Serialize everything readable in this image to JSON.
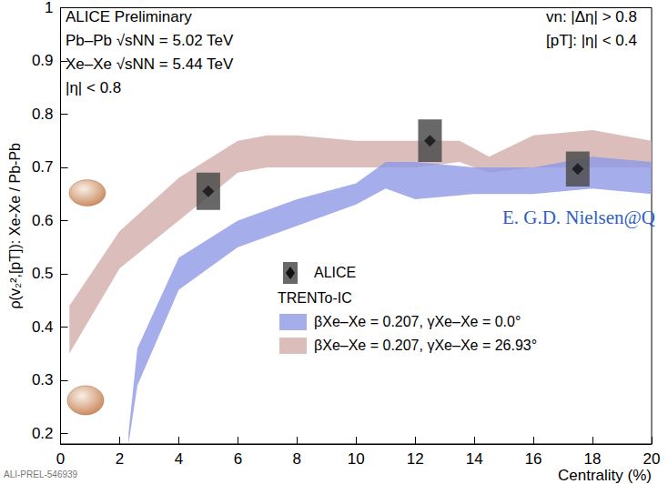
{
  "chart_data": {
    "type": "scatter",
    "xlabel": "Centrality (%)",
    "ylabel": "ρ(v₂²,[pT]): Xe-Xe / Pb-Pb",
    "xlim": [
      0,
      20
    ],
    "xticks": [
      0,
      2,
      4,
      6,
      8,
      10,
      12,
      14,
      16,
      18,
      20
    ],
    "ylim": [
      0.18,
      1
    ],
    "yticks": [
      0.2,
      0.3,
      0.4,
      0.5,
      0.6,
      0.7,
      0.8,
      0.9,
      1
    ],
    "grid": false,
    "legend": "bottom",
    "legend_title": "TRENTo-IC",
    "series": [
      {
        "name": "ALICE",
        "type": "scatter",
        "marker": "diamond",
        "color": "#111111",
        "x": [
          5,
          12.5,
          17.5
        ],
        "values": [
          0.655,
          0.75,
          0.697
        ],
        "errors": [
          0.035,
          0.04,
          0.033
        ]
      },
      {
        "name": "βXe–Xe = 0.207, γXe–Xe = 26.93°",
        "type": "band",
        "color": "#d2aeaa",
        "x": [
          0.3,
          2,
          4,
          6,
          7,
          8,
          10,
          12,
          13.5,
          14.5,
          16,
          18,
          20
        ],
        "lower": [
          0.35,
          0.51,
          0.6,
          0.69,
          0.7,
          0.7,
          0.7,
          0.7,
          0.71,
          0.69,
          0.7,
          0.7,
          0.7
        ],
        "upper": [
          0.44,
          0.58,
          0.68,
          0.75,
          0.76,
          0.76,
          0.75,
          0.75,
          0.75,
          0.72,
          0.76,
          0.77,
          0.75
        ]
      },
      {
        "name": "βXe–Xe = 0.207, γXe–Xe = 0.0°",
        "type": "band",
        "color": "#8f98e6",
        "x": [
          2.3,
          2.6,
          4,
          6,
          8,
          10,
          11,
          12,
          14,
          16,
          18,
          20
        ],
        "lower": [
          0.18,
          0.29,
          0.47,
          0.55,
          0.59,
          0.63,
          0.66,
          0.64,
          0.65,
          0.65,
          0.66,
          0.65
        ],
        "upper": [
          0.2,
          0.36,
          0.53,
          0.6,
          0.64,
          0.67,
          0.71,
          0.71,
          0.7,
          0.7,
          0.72,
          0.71
        ]
      }
    ],
    "annotations": [
      "ALICE Preliminary",
      "Pb–Pb √sNN = 5.02 TeV",
      "Xe–Xe √sNN = 5.44 TeV",
      "|η| < 0.8",
      "vn: |Δη| > 0.8",
      "[pT]: |η| < 0.4",
      "E. G.D. Nielsen@Q",
      "ALI-PREL-546939"
    ]
  }
}
